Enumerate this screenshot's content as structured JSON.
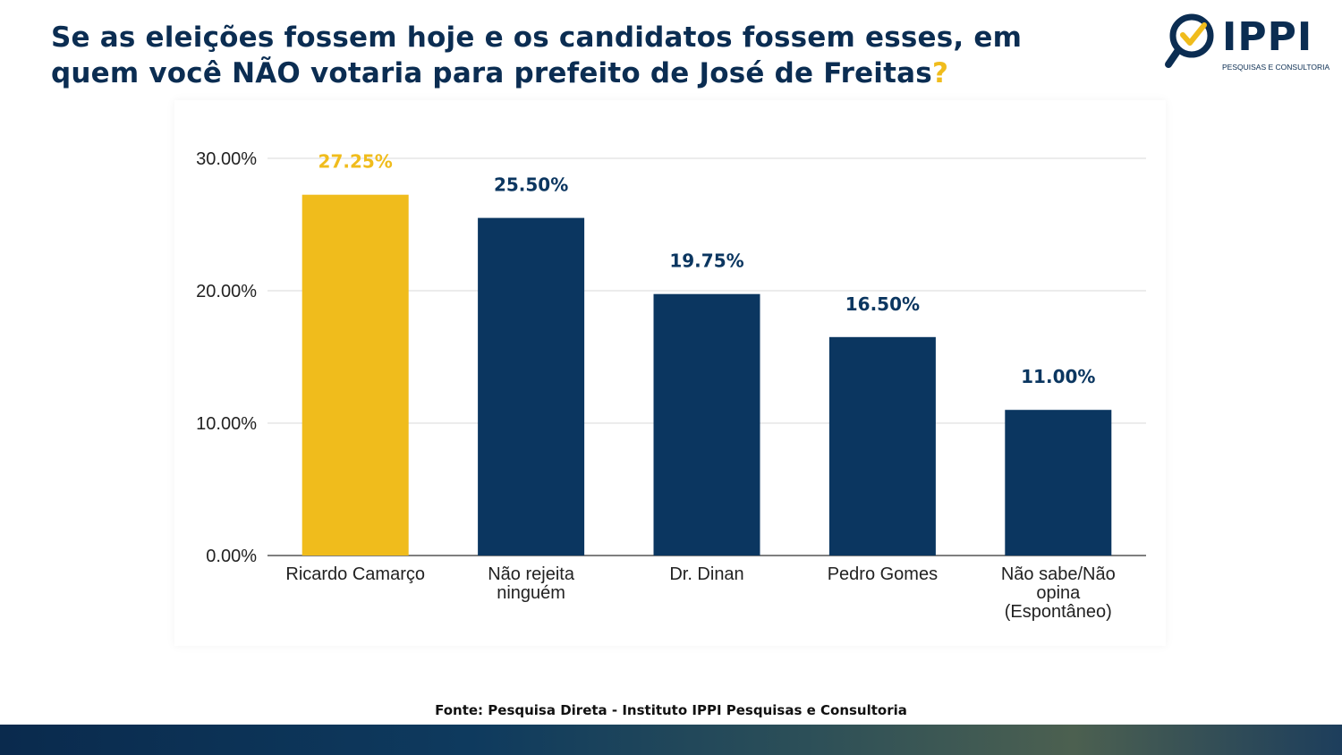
{
  "header": {
    "title": "Se as eleições fossem hoje e os candidatos fossem esses, em quem você NÃO votaria para prefeito de José de Freitas",
    "title_mark": "?"
  },
  "logo": {
    "name": "IPPI",
    "subtitle": "PESQUISAS E CONSULTORIA",
    "icon": "magnifier-check-icon"
  },
  "chart_data": {
    "type": "bar",
    "title": "",
    "xlabel": "",
    "ylabel": "",
    "ylim": [
      0,
      30
    ],
    "yticks": [
      {
        "value": 0,
        "label": "0.00%"
      },
      {
        "value": 10,
        "label": "10.00%"
      },
      {
        "value": 20,
        "label": "20.00%"
      },
      {
        "value": 30,
        "label": "30.00%"
      }
    ],
    "grid": true,
    "bars": [
      {
        "category": [
          "Ricardo Camarço"
        ],
        "value": 27.25,
        "label": "27.25%",
        "color": "#f0bc1c"
      },
      {
        "category": [
          "Não rejeita",
          "ninguém"
        ],
        "value": 25.5,
        "label": "25.50%",
        "color": "#0b3660"
      },
      {
        "category": [
          "Dr. Dinan"
        ],
        "value": 19.75,
        "label": "19.75%",
        "color": "#0b3660"
      },
      {
        "category": [
          "Pedro Gomes"
        ],
        "value": 16.5,
        "label": "16.50%",
        "color": "#0b3660"
      },
      {
        "category": [
          "Não sabe/Não",
          "opina",
          "(Espontâneo)"
        ],
        "value": 11.0,
        "label": "11.00%",
        "color": "#0b3660"
      }
    ]
  },
  "source": "Fonte: Pesquisa Direta - Instituto IPPI Pesquisas e Consultoria"
}
